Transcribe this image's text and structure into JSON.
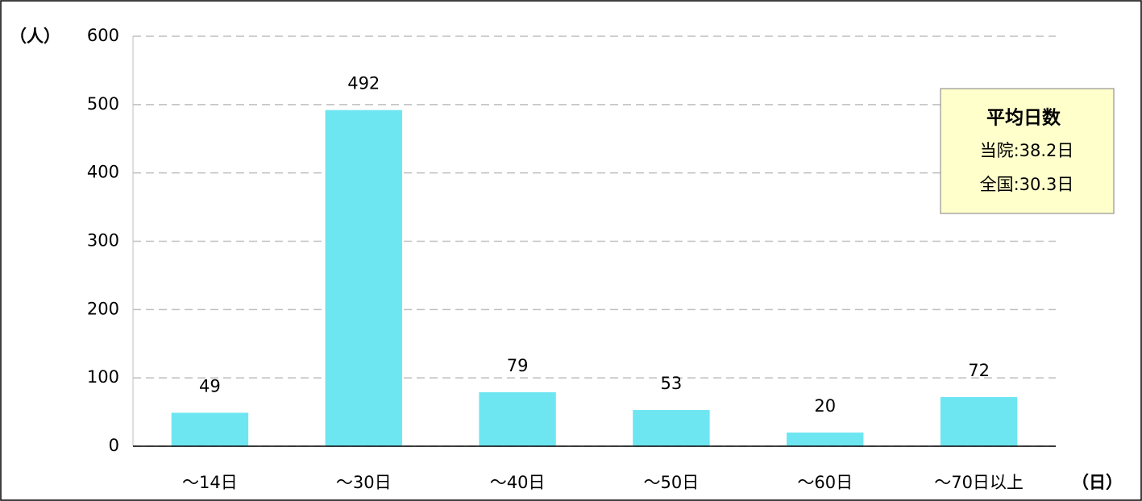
{
  "chart_data": {
    "type": "bar",
    "y_axis_label": "（人）",
    "x_axis_label": "（日）",
    "categories": [
      "～14日",
      "～30日",
      "～40日",
      "～50日",
      "～60日",
      "～70日以上"
    ],
    "values": [
      49,
      492,
      79,
      53,
      20,
      72
    ],
    "color": "#6ee6f2",
    "ylim": [
      0,
      600
    ],
    "yticks": [
      0,
      100,
      200,
      300,
      400,
      500,
      600
    ],
    "grid": true,
    "annotation": [
      "平均日数",
      "当院:38.2日",
      "全国:30.3日"
    ]
  }
}
